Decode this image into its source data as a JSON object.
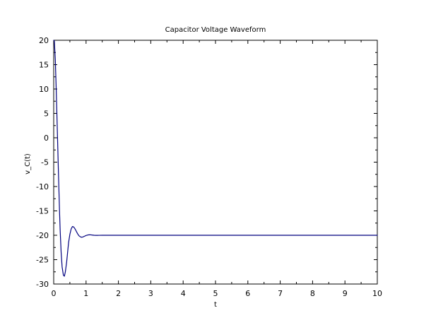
{
  "chart_data": {
    "type": "line",
    "title": "Capacitor Voltage Waveform",
    "xlabel": "t",
    "ylabel": "v_C(t)",
    "xlim": [
      0,
      10
    ],
    "ylim": [
      -30,
      20
    ],
    "x_ticks": [
      0,
      1,
      2,
      3,
      4,
      5,
      6,
      7,
      8,
      9,
      10
    ],
    "y_ticks": [
      20,
      15,
      10,
      5,
      0,
      -5,
      -10,
      -15,
      -20,
      -25,
      -30
    ],
    "x_tick_labels": [
      "0",
      "1",
      "2",
      "3",
      "4",
      "5",
      "6",
      "7",
      "8",
      "9",
      "10"
    ],
    "y_tick_labels": [
      "20",
      "15",
      "10",
      "5",
      "0",
      "-5",
      "-10",
      "-15",
      "-20",
      "-25",
      "-30"
    ],
    "grid": false,
    "legend": "none",
    "colors": {
      "line": "#00007f",
      "axis": "#000000",
      "background": "#ffffff"
    },
    "series": [
      {
        "x": [
          0,
          0.02,
          0.05,
          0.08,
          0.1,
          0.12,
          0.15,
          0.18,
          0.2,
          0.23,
          0.26,
          0.3,
          0.33,
          0.36,
          0.4,
          0.43,
          0.46,
          0.5,
          0.54,
          0.58,
          0.62,
          0.66,
          0.7,
          0.74,
          0.78,
          0.82,
          0.86,
          0.9,
          0.95,
          1.0,
          1.05,
          1.1,
          1.15,
          1.2,
          1.25,
          1.3,
          1.35,
          1.4,
          1.5,
          1.6,
          1.8,
          2.0,
          3,
          4,
          5,
          6,
          7,
          8,
          9,
          10
        ],
        "values": [
          20,
          19.8,
          16.0,
          9.5,
          4.5,
          -0.5,
          -8.0,
          -15.0,
          -19.0,
          -23.5,
          -26.5,
          -28.2,
          -28.4,
          -27.5,
          -25.5,
          -23.5,
          -21.5,
          -19.8,
          -18.7,
          -18.2,
          -18.3,
          -18.7,
          -19.2,
          -19.7,
          -20.1,
          -20.3,
          -20.4,
          -20.35,
          -20.2,
          -20.05,
          -19.95,
          -19.9,
          -19.92,
          -19.96,
          -20.0,
          -20.02,
          -20.02,
          -20.01,
          -20.0,
          -20.0,
          -20.0,
          -20.0,
          -20,
          -20,
          -20,
          -20,
          -20,
          -20,
          -20,
          -20
        ]
      }
    ]
  }
}
